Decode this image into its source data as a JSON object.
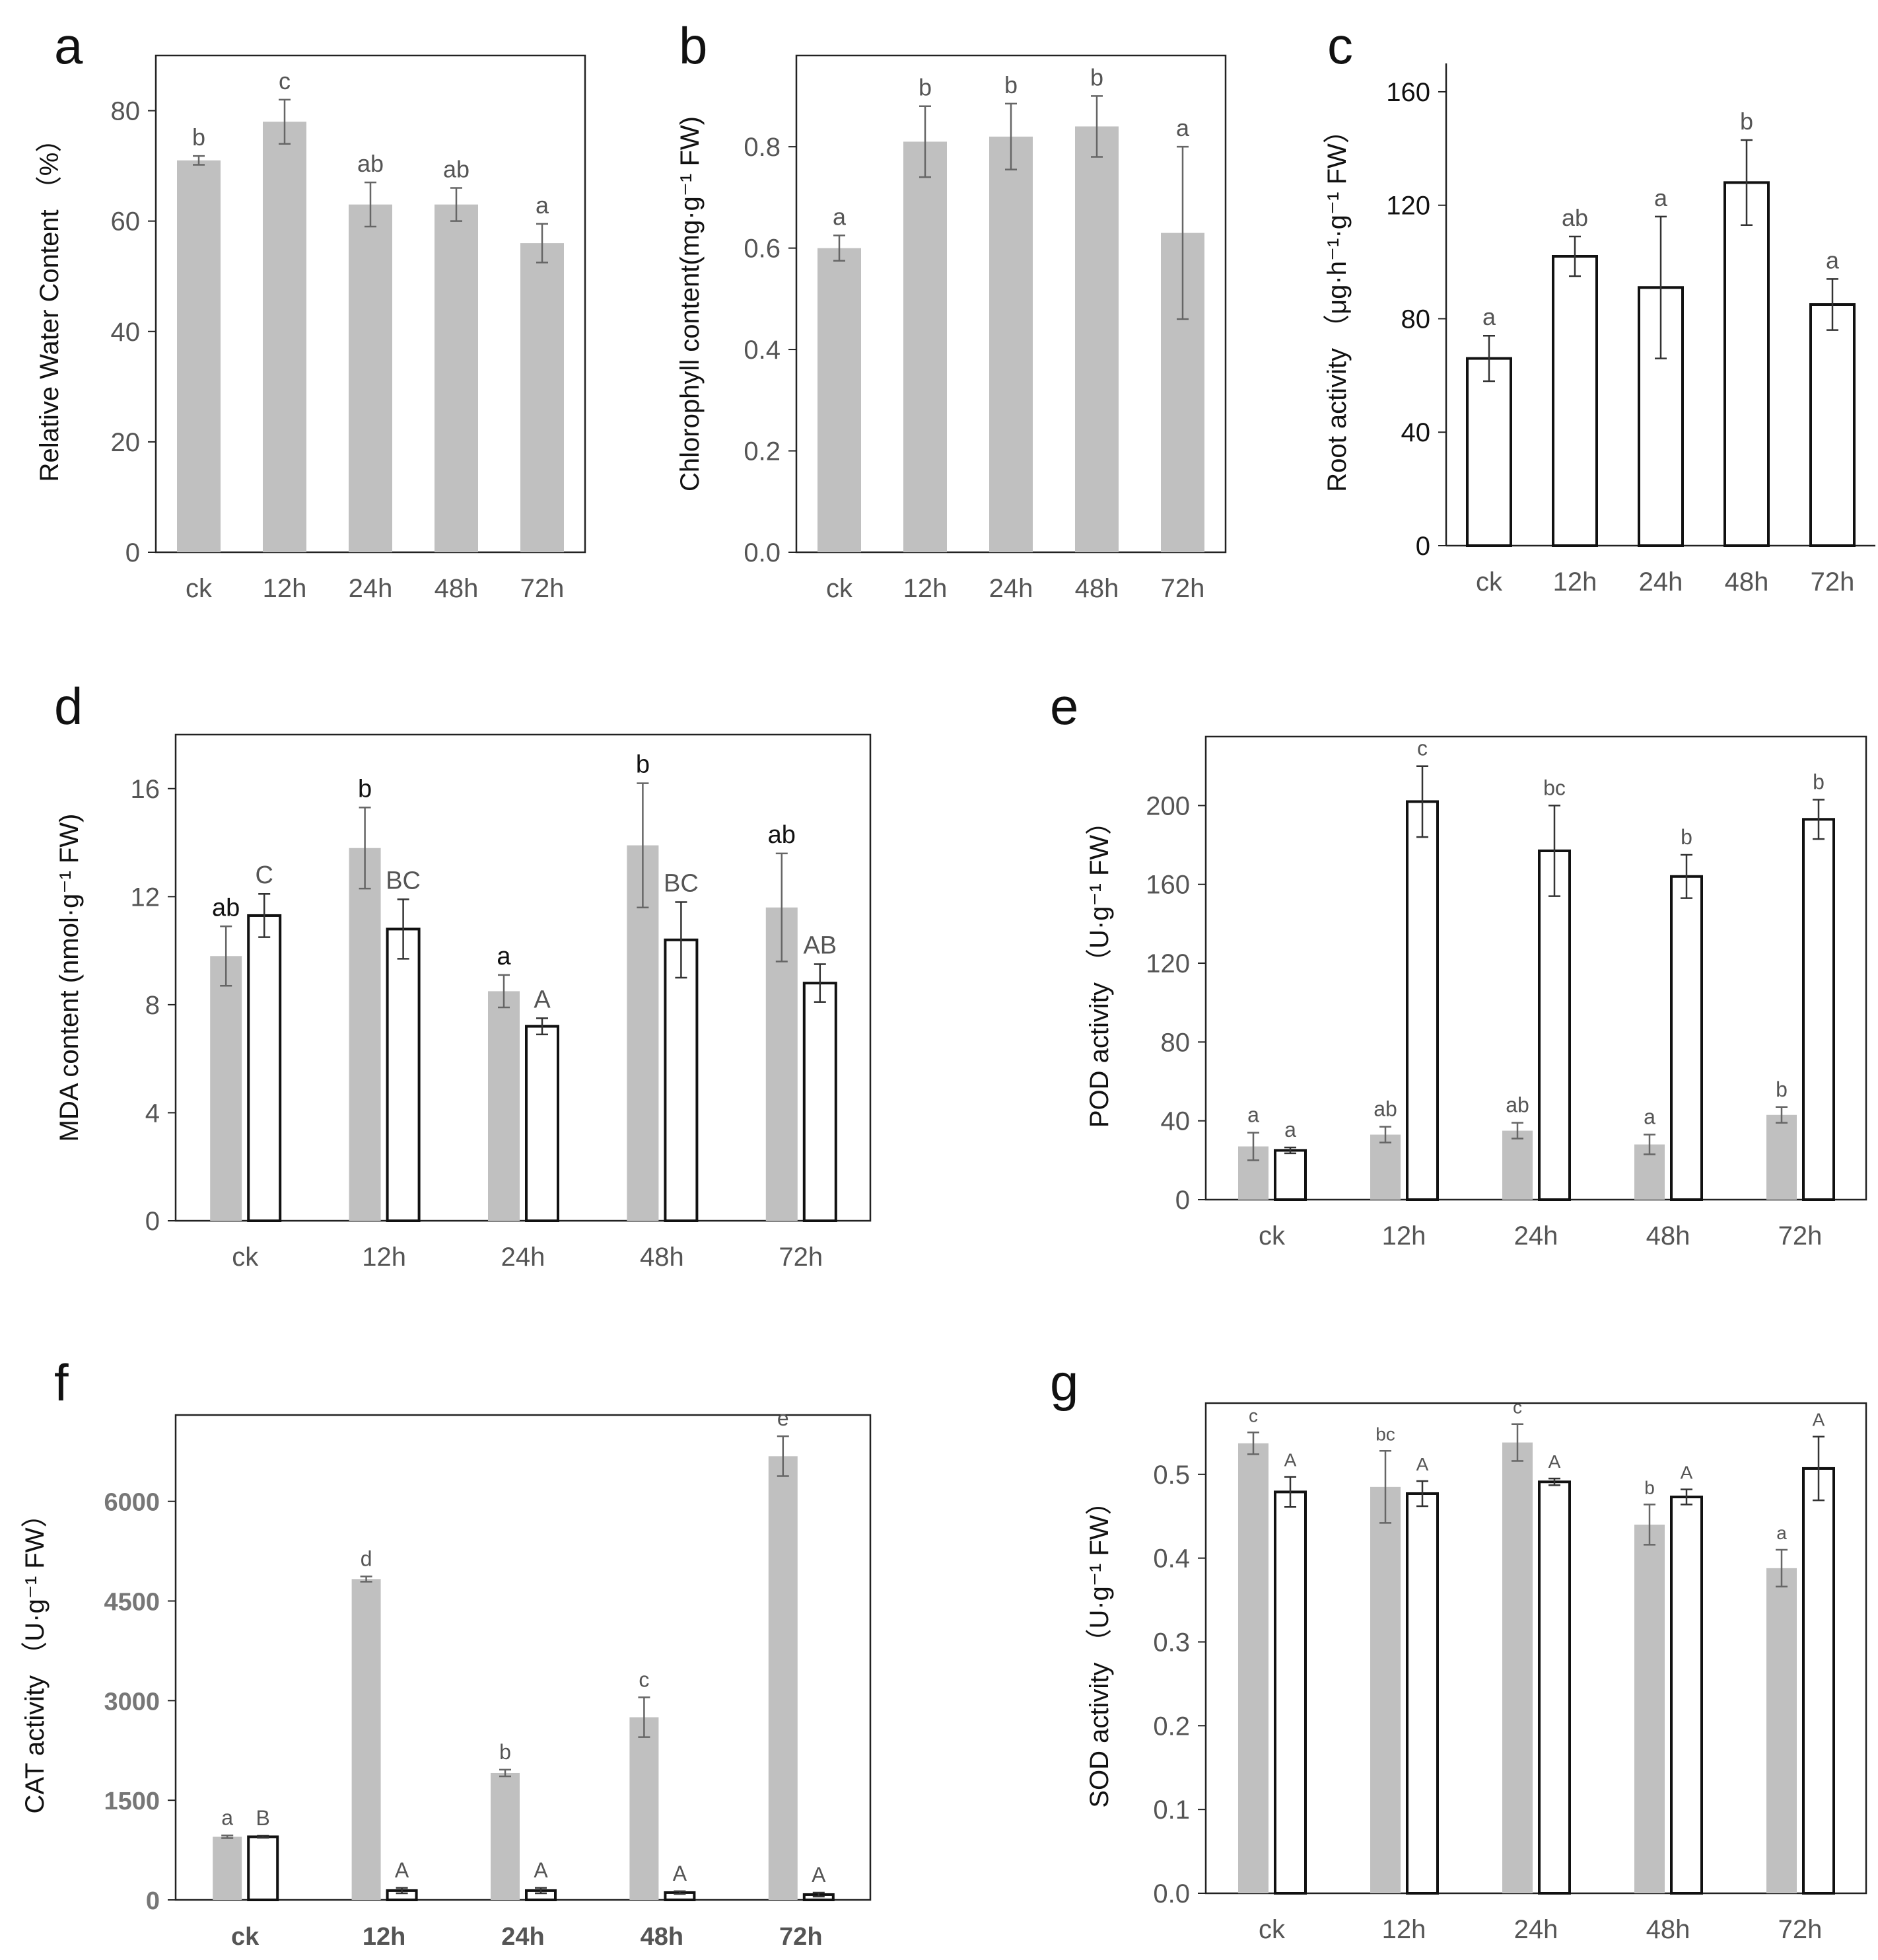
{
  "chart_data": [
    {
      "panel": "a",
      "type": "bar",
      "categories": [
        "ck",
        "12h",
        "24h",
        "48h",
        "72h"
      ],
      "ylabel": "Relative Water Content （%）",
      "ylim": [
        0,
        90
      ],
      "yticks": [
        "0",
        "20",
        "40",
        "60",
        "80"
      ],
      "series": [
        {
          "fill": "#c0c0c0",
          "values": [
            71.0,
            78.0,
            63.0,
            63.0,
            56.0
          ],
          "errors": [
            0.8,
            4.0,
            4.0,
            3.0,
            3.5
          ],
          "letters": [
            "b",
            "c",
            "ab",
            "ab",
            "a"
          ]
        }
      ]
    },
    {
      "panel": "b",
      "type": "bar",
      "categories": [
        "ck",
        "12h",
        "24h",
        "48h",
        "72h"
      ],
      "ylabel": "Chlorophyll content(mg·g⁻¹ FW)",
      "ylim": [
        0,
        0.98
      ],
      "yticks": [
        "0.0",
        "0.2",
        "0.4",
        "0.6",
        "0.8"
      ],
      "series": [
        {
          "fill": "#c0c0c0",
          "values": [
            0.6,
            0.81,
            0.82,
            0.84,
            0.63
          ],
          "errors": [
            0.025,
            0.07,
            0.065,
            0.06,
            0.17
          ],
          "letters": [
            "a",
            "b",
            "b",
            "b",
            "a"
          ]
        }
      ]
    },
    {
      "panel": "c",
      "type": "bar",
      "categories": [
        "ck",
        "12h",
        "24h",
        "48h",
        "72h"
      ],
      "ylabel": "Root activity （μg·h⁻¹·g⁻¹ FW）",
      "ylim": [
        0,
        170
      ],
      "yticks": [
        "0",
        "40",
        "80",
        "120",
        "160"
      ],
      "series": [
        {
          "fill": "#ffffff",
          "values": [
            66,
            102,
            91,
            128,
            85
          ],
          "errors": [
            8,
            7,
            25,
            15,
            9
          ],
          "letters": [
            "a",
            "ab",
            "a",
            "b",
            "a"
          ]
        }
      ]
    },
    {
      "panel": "d",
      "type": "bar",
      "categories": [
        "ck",
        "12h",
        "24h",
        "48h",
        "72h"
      ],
      "ylabel": "MDA content (nmol·g⁻¹ FW)",
      "ylim": [
        0,
        18
      ],
      "yticks": [
        "0",
        "4",
        "8",
        "12",
        "16"
      ],
      "series": [
        {
          "fill": "#c0c0c0",
          "values": [
            9.8,
            13.8,
            8.5,
            13.9,
            11.6
          ],
          "errors": [
            1.1,
            1.5,
            0.6,
            2.3,
            2.0
          ],
          "letters": [
            "ab",
            "b",
            "a",
            "b",
            "ab"
          ]
        },
        {
          "fill": "#ffffff",
          "values": [
            11.3,
            10.8,
            7.2,
            10.4,
            8.8
          ],
          "errors": [
            0.8,
            1.1,
            0.3,
            1.4,
            0.7
          ],
          "letters": [
            "C",
            "BC",
            "A",
            "BC",
            "AB"
          ]
        }
      ]
    },
    {
      "panel": "e",
      "type": "bar",
      "categories": [
        "ck",
        "12h",
        "24h",
        "48h",
        "72h"
      ],
      "ylabel": "POD activity （U·g⁻¹ FW）",
      "ylim": [
        0,
        235
      ],
      "yticks": [
        "0",
        "40",
        "80",
        "120",
        "160",
        "200"
      ],
      "series": [
        {
          "fill": "#c0c0c0",
          "values": [
            27,
            33,
            35,
            28,
            43
          ],
          "errors": [
            7,
            4,
            4,
            5,
            4
          ],
          "letters": [
            "a",
            "ab",
            "ab",
            "a",
            "b"
          ]
        },
        {
          "fill": "#ffffff",
          "values": [
            25,
            202,
            177,
            164,
            193
          ],
          "errors": [
            1.5,
            18,
            23,
            11,
            10
          ],
          "letters": [
            "a",
            "c",
            "bc",
            "b",
            "b"
          ]
        }
      ]
    },
    {
      "panel": "f",
      "type": "bar",
      "categories": [
        "ck",
        "12h",
        "24h",
        "48h",
        "72h"
      ],
      "ylabel": "CAT activity （U·g⁻¹ FW）",
      "ylim": [
        0,
        7300
      ],
      "yticks": [
        "0",
        "1500",
        "3000",
        "4500",
        "6000"
      ],
      "series": [
        {
          "fill": "#c0c0c0",
          "values": [
            950,
            4830,
            1910,
            2750,
            6680
          ],
          "errors": [
            20,
            40,
            50,
            300,
            300
          ],
          "letters": [
            "a",
            "d",
            "b",
            "c",
            "e"
          ]
        },
        {
          "fill": "#ffffff",
          "values": [
            950,
            140,
            140,
            110,
            80
          ],
          "errors": [
            15,
            40,
            40,
            20,
            30
          ],
          "letters": [
            "B",
            "A",
            "A",
            "A",
            "A"
          ]
        }
      ]
    },
    {
      "panel": "g",
      "type": "bar",
      "categories": [
        "ck",
        "12h",
        "24h",
        "48h",
        "72h"
      ],
      "ylabel": "SOD activity （U·g⁻¹ FW）",
      "ylim": [
        0,
        0.585
      ],
      "yticks": [
        "0.0",
        "0.1",
        "0.2",
        "0.3",
        "0.4",
        "0.5"
      ],
      "series": [
        {
          "fill": "#c0c0c0",
          "values": [
            0.537,
            0.485,
            0.538,
            0.44,
            0.388
          ],
          "errors": [
            0.013,
            0.043,
            0.022,
            0.024,
            0.022
          ],
          "letters": [
            "c",
            "bc",
            "c",
            "b",
            "a"
          ]
        },
        {
          "fill": "#ffffff",
          "values": [
            0.479,
            0.477,
            0.491,
            0.473,
            0.507
          ],
          "errors": [
            0.018,
            0.015,
            0.004,
            0.009,
            0.038
          ],
          "letters": [
            "A",
            "A",
            "A",
            "A",
            "A"
          ]
        }
      ]
    }
  ]
}
